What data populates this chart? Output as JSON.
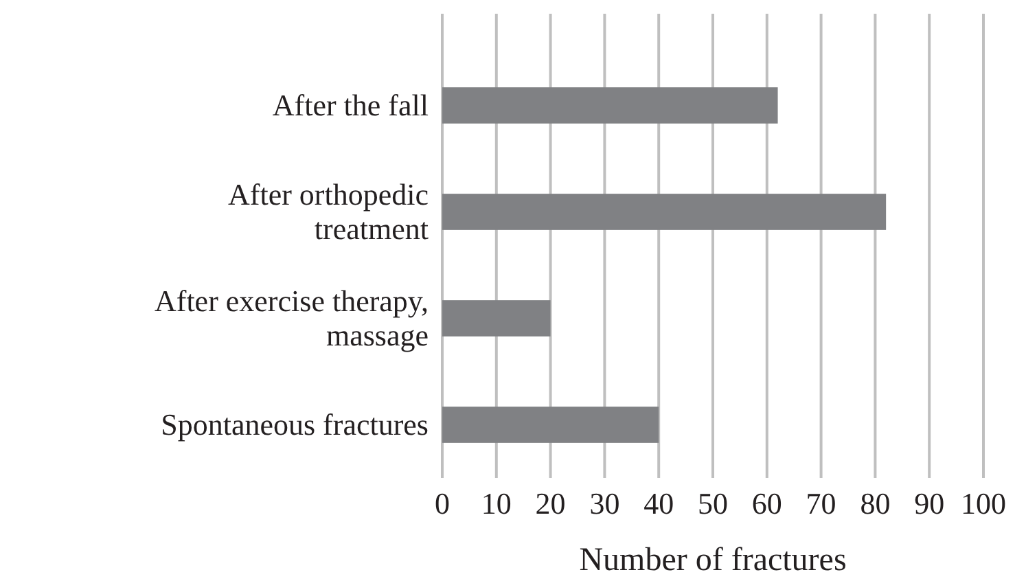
{
  "chart_data": {
    "type": "bar",
    "orientation": "horizontal",
    "xlabel": "Number of fractures",
    "categories": [
      "After the fall",
      "After orthopedic treatment",
      "After exercise therapy, massage",
      "Spontaneous fractures"
    ],
    "values": [
      62,
      82,
      20,
      40
    ],
    "color": "#808184",
    "xlim": [
      0,
      100
    ],
    "xticks": [
      0,
      10,
      20,
      30,
      40,
      50,
      60,
      70,
      80,
      90,
      100
    ],
    "grid": "x"
  }
}
